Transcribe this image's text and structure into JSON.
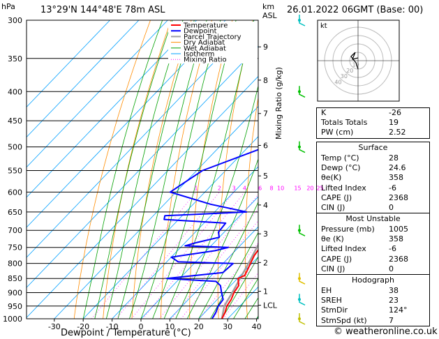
{
  "header": {
    "location": "13°29'N 144°48'E 78m ASL",
    "datetime": "26.01.2022 06GMT (Base: 00)",
    "hpa_label": "hPa",
    "km_label": "km",
    "asl_label": "ASL"
  },
  "chart_data": {
    "type": "skew-t",
    "xlabel": "Dewpoint / Temperature (°C)",
    "ylabel": "hPa",
    "y2label": "Mixing Ratio (g/kg)",
    "pressure_levels": [
      300,
      350,
      400,
      450,
      500,
      550,
      600,
      650,
      700,
      750,
      800,
      850,
      900,
      950,
      1000
    ],
    "temp_ticks": [
      -30,
      -20,
      -10,
      0,
      10,
      20,
      30,
      40
    ],
    "height_km": [
      {
        "km": "9",
        "p": 334
      },
      {
        "km": "8",
        "p": 382
      },
      {
        "km": "7",
        "p": 437
      },
      {
        "km": "6",
        "p": 497
      },
      {
        "km": "5",
        "p": 562
      },
      {
        "km": "4",
        "p": 632
      },
      {
        "km": "3",
        "p": 710
      },
      {
        "km": "2",
        "p": 797
      },
      {
        "km": "1",
        "p": 895
      },
      {
        "km": "LCL",
        "p": 947
      }
    ],
    "mixing_ratio_labels": [
      "1",
      "2",
      "3",
      "4",
      "6",
      "8",
      "10",
      "15",
      "20",
      "25"
    ],
    "mixing_ratio_values": [
      1,
      2,
      3,
      4,
      6,
      8,
      10,
      15,
      20,
      25
    ],
    "legend": [
      "Temperature",
      "Dewpoint",
      "Parcel Trajectory",
      "Dry Adiabat",
      "Wet Adiabat",
      "Isotherm",
      "Mixing Ratio"
    ],
    "temperature": [
      [
        1000,
        28
      ],
      [
        975,
        27
      ],
      [
        950,
        25.5
      ],
      [
        925,
        24.8
      ],
      [
        900,
        23.5
      ],
      [
        875,
        22.8
      ],
      [
        850,
        20.2
      ],
      [
        840,
        21.5
      ],
      [
        825,
        20.8
      ],
      [
        800,
        19.5
      ],
      [
        775,
        18.2
      ],
      [
        750,
        17.5
      ],
      [
        725,
        15.5
      ],
      [
        700,
        13.8
      ],
      [
        650,
        10.5
      ],
      [
        600,
        7.5
      ],
      [
        550,
        3.5
      ],
      [
        500,
        -1
      ],
      [
        450,
        -5.5
      ],
      [
        400,
        -11
      ],
      [
        375,
        -14.5
      ],
      [
        350,
        -19
      ],
      [
        300,
        -30
      ]
    ],
    "dewpoint": [
      [
        1000,
        24.6
      ],
      [
        975,
        23.8
      ],
      [
        950,
        22.5
      ],
      [
        925,
        22
      ],
      [
        900,
        19.2
      ],
      [
        875,
        16.5
      ],
      [
        860,
        13.5
      ],
      [
        850,
        -4.5
      ],
      [
        830,
        13
      ],
      [
        800,
        13.5
      ],
      [
        795,
        -6
      ],
      [
        780,
        -10
      ],
      [
        760,
        3
      ],
      [
        750,
        6.5
      ],
      [
        745,
        -9
      ],
      [
        735,
        -6
      ],
      [
        720,
        0
      ],
      [
        705,
        -2
      ],
      [
        680,
        -2.5
      ],
      [
        670,
        -25
      ],
      [
        660,
        -26
      ],
      [
        650,
        1
      ],
      [
        630,
        -14
      ],
      [
        600,
        -32
      ],
      [
        550,
        -28
      ],
      [
        500,
        -14
      ],
      [
        475,
        -10
      ],
      [
        450,
        -12
      ],
      [
        425,
        -8
      ],
      [
        400,
        -12
      ],
      [
        375,
        -19
      ],
      [
        350,
        -17
      ],
      [
        325,
        -31
      ],
      [
        300,
        -34
      ]
    ],
    "parcel": [
      [
        1000,
        28
      ],
      [
        950,
        24.6
      ],
      [
        900,
        22.9
      ],
      [
        850,
        20.9
      ],
      [
        800,
        18.8
      ],
      [
        750,
        16.4
      ],
      [
        700,
        13.9
      ],
      [
        650,
        11
      ],
      [
        600,
        8
      ],
      [
        550,
        4.5
      ],
      [
        500,
        0.5
      ],
      [
        450,
        -4.5
      ],
      [
        400,
        -10.5
      ],
      [
        350,
        -17.5
      ],
      [
        300,
        -26.5
      ]
    ],
    "wind_barbs_hpa": [
      300,
      400,
      500,
      700,
      850,
      925,
      1000
    ]
  },
  "hodograph": {
    "label": "kt",
    "ring_labels": [
      "10",
      "20",
      "30",
      "40"
    ]
  },
  "indices": [
    {
      "k": "K",
      "v": "-26"
    },
    {
      "k": "Totals Totals",
      "v": "19"
    },
    {
      "k": "PW (cm)",
      "v": "2.52"
    }
  ],
  "surface": {
    "title": "Surface",
    "rows": [
      {
        "k": "Temp (°C)",
        "v": "28"
      },
      {
        "k": "Dewp (°C)",
        "v": "24.6"
      },
      {
        "k": "θe(K)",
        "v": "358"
      },
      {
        "k": "Lifted Index",
        "v": "-6"
      },
      {
        "k": "CAPE (J)",
        "v": "2368"
      },
      {
        "k": "CIN (J)",
        "v": "0"
      }
    ]
  },
  "unstable": {
    "title": "Most Unstable",
    "rows": [
      {
        "k": "Pressure (mb)",
        "v": "1005"
      },
      {
        "k": "θe (K)",
        "v": "358"
      },
      {
        "k": "Lifted Index",
        "v": "-6"
      },
      {
        "k": "CAPE (J)",
        "v": "2368"
      },
      {
        "k": "CIN (J)",
        "v": "0"
      }
    ]
  },
  "hodo_table": {
    "title": "Hodograph",
    "rows": [
      {
        "k": "EH",
        "v": "38"
      },
      {
        "k": "SREH",
        "v": "23"
      },
      {
        "k": "StmDir",
        "v": "124°"
      },
      {
        "k": "StmSpd (kt)",
        "v": "7"
      }
    ]
  },
  "credit": "© weatheronline.co.uk",
  "colors": {
    "temperature": "#ff0000",
    "dewpoint": "#0000ff",
    "parcel": "#a0a0a0",
    "dry_adiabat": "#ff8c00",
    "wet_adiabat": "#00a000",
    "isotherm": "#00a0ff",
    "mixing_ratio": "#ff00ff"
  }
}
